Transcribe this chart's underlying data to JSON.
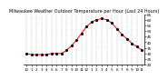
{
  "title": "Milwaukee Weather Outdoor Temperature per Hour (Last 24 Hours)",
  "hours": [
    0,
    1,
    2,
    3,
    4,
    5,
    6,
    7,
    8,
    9,
    10,
    11,
    12,
    13,
    14,
    15,
    16,
    17,
    18,
    19,
    20,
    21,
    22,
    23
  ],
  "temperatures": [
    30,
    29,
    29,
    29,
    29,
    30,
    30,
    30,
    33,
    37,
    42,
    48,
    54,
    58,
    60,
    61,
    60,
    57,
    52,
    47,
    43,
    39,
    36,
    33
  ],
  "line_color": "#ff0000",
  "dot_color": "#000000",
  "bg_color": "#ffffff",
  "plot_bg_color": "#ffffff",
  "grid_color": "#aaaaaa",
  "yticks": [
    20,
    25,
    30,
    35,
    40,
    45,
    50,
    55,
    60,
    65
  ],
  "ylim": [
    26,
    65
  ],
  "xlim": [
    -0.5,
    23.5
  ],
  "xtick_labels": [
    "12",
    "1",
    "2",
    "3",
    "4",
    "5",
    "6",
    "7",
    "8",
    "9",
    "10",
    "11",
    "12",
    "1",
    "2",
    "3",
    "4",
    "5",
    "6",
    "7",
    "8",
    "9",
    "10",
    "11"
  ],
  "title_fontsize": 3.5,
  "tick_fontsize": 3.0,
  "line_width": 0.7,
  "dot_size": 1.5
}
